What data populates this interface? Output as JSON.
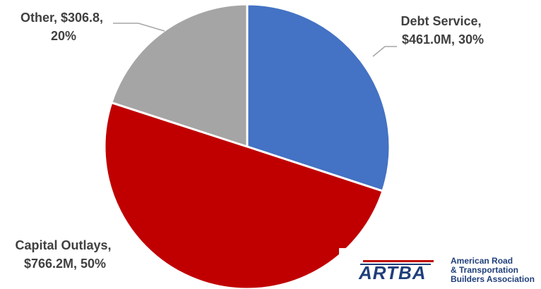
{
  "chart_data": {
    "type": "pie",
    "slices": [
      {
        "label_line1": "Debt Service,",
        "label_line2": "$461.0M, 30%",
        "value": 461.0,
        "percent": 30,
        "color": "#4472c4"
      },
      {
        "label_line1": "Capital Outlays,",
        "label_line2": "$766.2M, 50%",
        "value": 766.2,
        "percent": 50,
        "color": "#c00000"
      },
      {
        "label_line1": "Other, $306.8,",
        "label_line2": "20%",
        "value": 306.8,
        "percent": 20,
        "color": "#a5a5a5"
      }
    ],
    "start_angle": "12 o'clock",
    "direction": "clockwise"
  },
  "logo": {
    "mark_text": "ARTBA",
    "line1": "American Road",
    "line2": "& Transportation",
    "line3": "Builders Association",
    "color": "#1f3f7a",
    "accent_color": "#c00000"
  }
}
